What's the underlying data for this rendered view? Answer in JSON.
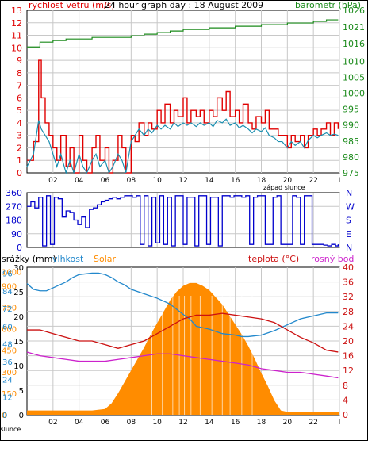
{
  "colors": {
    "wind": "#e00000",
    "gust": "#e00000",
    "wind_avg": "#1a8fb0",
    "pressure": "#1a8a1a",
    "direction": "#0000cc",
    "humidity": "#2288cc",
    "temperature": "#cc1111",
    "dew_point": "#cc22cc",
    "solar": "#ff8c00",
    "grid": "#c8c8c8",
    "axis": "#000000"
  },
  "chart_data": [
    {
      "type": "line",
      "title": "24 hour graph day : 18 August 2009",
      "left_label": "rychlost vetru (m/s)",
      "right_label": "barometr (hPa)",
      "sunset_label": "západ slunce",
      "left_ylim": [
        0,
        13
      ],
      "left_ticks": [
        "0",
        "1",
        "2",
        "3",
        "4",
        "5",
        "6",
        "7",
        "8",
        "9",
        "10",
        "11",
        "12",
        "13"
      ],
      "right_ylim": [
        975,
        1026
      ],
      "right_ticks": [
        "975",
        "980",
        "985",
        "990",
        "995",
        "1000",
        "1005",
        "1010",
        "1016",
        "1021",
        "1026"
      ],
      "x_ticks": [
        "02",
        "04",
        "06",
        "08",
        "10",
        "12",
        "14",
        "16",
        "18",
        "20",
        "22",
        "I"
      ],
      "x_tick_hours": [
        2,
        4,
        6,
        8,
        10,
        12,
        14,
        16,
        18,
        20,
        22,
        24
      ],
      "xlim": [
        0,
        24
      ],
      "sunset_hour": 20,
      "series": [
        {
          "key": "wind",
          "x": [
            0,
            0.5,
            0.9,
            1.1,
            1.4,
            1.7,
            2.0,
            2.3,
            2.6,
            3.0,
            3.3,
            3.6,
            4.0,
            4.3,
            4.6,
            5.0,
            5.3,
            5.6,
            6.0,
            6.3,
            6.6,
            7.0,
            7.3,
            7.6,
            8.0,
            8.3,
            8.6,
            9.0,
            9.3,
            9.6,
            10.0,
            10.3,
            10.6,
            11.0,
            11.3,
            11.6,
            12.0,
            12.3,
            12.6,
            13.0,
            13.3,
            13.6,
            14.0,
            14.3,
            14.6,
            15.0,
            15.3,
            15.6,
            16.0,
            16.3,
            16.6,
            17.0,
            17.3,
            17.6,
            18.0,
            18.3,
            18.6,
            19.0,
            19.3,
            19.6,
            20.0,
            20.3,
            20.6,
            21.0,
            21.3,
            21.6,
            22.0,
            22.3,
            22.6,
            23.0,
            23.3,
            23.6,
            23.9
          ],
          "values": [
            1,
            2.5,
            9,
            6,
            4,
            3,
            2,
            1,
            3,
            0.5,
            2,
            0,
            3,
            1,
            0,
            2,
            3,
            1,
            2,
            0,
            1,
            3,
            2,
            0,
            3,
            2.5,
            4,
            3,
            4,
            3.5,
            5,
            4,
            5.5,
            4,
            5,
            4.5,
            6,
            4,
            5,
            4.5,
            5,
            4,
            5,
            4.5,
            6,
            5,
            6.5,
            4.5,
            5,
            4,
            5.5,
            4,
            3.5,
            4.5,
            4,
            5,
            3.5,
            3.5,
            3,
            3,
            2,
            3,
            2.5,
            3,
            2,
            3,
            3.5,
            3,
            3.5,
            4,
            3,
            4,
            3.5
          ]
        },
        {
          "key": "wind_avg",
          "x": [
            0,
            0.5,
            0.9,
            1.1,
            1.4,
            1.7,
            2.0,
            2.3,
            2.6,
            3.0,
            3.3,
            3.6,
            4.0,
            4.3,
            4.6,
            5.0,
            5.3,
            5.6,
            6.0,
            6.3,
            6.6,
            7.0,
            7.3,
            7.6,
            8.0,
            8.3,
            8.6,
            9.0,
            9.3,
            9.6,
            10.0,
            10.3,
            10.6,
            11.0,
            11.3,
            11.6,
            12.0,
            12.3,
            12.6,
            13.0,
            13.3,
            13.6,
            14.0,
            14.3,
            14.6,
            15.0,
            15.3,
            15.6,
            16.0,
            16.3,
            16.6,
            17.0,
            17.3,
            17.6,
            18.0,
            18.3,
            18.6,
            19.0,
            19.3,
            19.6,
            20.0,
            20.3,
            20.6,
            21.0,
            21.3,
            21.6,
            22.0,
            22.3,
            22.6,
            23.0,
            23.3,
            23.6,
            23.9
          ],
          "values": [
            0.5,
            1.5,
            4.2,
            3.5,
            3,
            2.5,
            1.5,
            0.5,
            1.5,
            0,
            1,
            0,
            1.5,
            0.5,
            0,
            1,
            1.5,
            0.5,
            1,
            0,
            0.5,
            1.5,
            1,
            0,
            2.5,
            3,
            3.5,
            3,
            3.5,
            3.2,
            3.8,
            3.5,
            3.8,
            3.5,
            4,
            3.7,
            4,
            3.8,
            4,
            3.7,
            4,
            3.8,
            4,
            3.7,
            4.2,
            4,
            4.3,
            3.8,
            4,
            3.6,
            3.8,
            3.5,
            3.2,
            3.5,
            3.3,
            3.6,
            3,
            2.8,
            2.5,
            2.5,
            2,
            2.5,
            2.2,
            2.5,
            2,
            2.6,
            3,
            2.8,
            3,
            3.2,
            3,
            3.1,
            3
          ]
        },
        {
          "key": "pressure",
          "axis": "right",
          "x": [
            0,
            0.7,
            1.0,
            2.0,
            3.0,
            4.0,
            5.0,
            6.0,
            7.0,
            8.0,
            9.0,
            10.0,
            11.0,
            12.0,
            13.0,
            14.0,
            15.0,
            16.0,
            17.0,
            18.0,
            19.0,
            20.0,
            21.0,
            22.0,
            23.0,
            23.9
          ],
          "values": [
            1014.5,
            1014.5,
            1016,
            1016.5,
            1017,
            1017,
            1017.5,
            1017.5,
            1017.5,
            1018,
            1018.5,
            1019,
            1019.5,
            1020,
            1020,
            1020.5,
            1020.5,
            1021,
            1021,
            1021.5,
            1021.5,
            1022,
            1022,
            1022.5,
            1023,
            1023
          ]
        }
      ]
    },
    {
      "type": "line",
      "ylim": [
        0,
        360
      ],
      "left_ticks": [
        "0",
        "90",
        "180",
        "270",
        "360"
      ],
      "right_ticks": [
        "N",
        "W",
        "S",
        "E",
        "N"
      ],
      "series": [
        {
          "key": "direction",
          "x": [
            0,
            0.3,
            0.6,
            0.9,
            1.2,
            1.5,
            1.8,
            2.1,
            2.4,
            2.7,
            3.0,
            3.3,
            3.6,
            3.9,
            4.2,
            4.5,
            4.8,
            5.1,
            5.4,
            5.7,
            6.0,
            6.3,
            6.6,
            6.9,
            7.2,
            7.5,
            7.8,
            8.1,
            8.4,
            8.7,
            9.0,
            9.3,
            9.6,
            9.9,
            10.2,
            10.5,
            10.8,
            11.1,
            11.4,
            11.7,
            12.0,
            12.3,
            12.6,
            12.9,
            13.2,
            13.5,
            13.8,
            14.1,
            14.4,
            14.7,
            15.0,
            15.3,
            15.6,
            15.9,
            16.2,
            16.5,
            16.8,
            17.1,
            17.4,
            17.7,
            18.0,
            18.3,
            18.6,
            18.9,
            19.2,
            19.5,
            19.8,
            20.1,
            20.4,
            20.7,
            21.0,
            21.3,
            21.6,
            21.9,
            22.2,
            22.5,
            22.8,
            23.1,
            23.4,
            23.7,
            23.9
          ],
          "values": [
            270,
            300,
            260,
            330,
            10,
            340,
            20,
            330,
            320,
            200,
            240,
            230,
            180,
            150,
            200,
            130,
            250,
            260,
            280,
            300,
            310,
            320,
            330,
            320,
            330,
            340,
            340,
            330,
            340,
            20,
            340,
            10,
            330,
            30,
            340,
            20,
            330,
            10,
            340,
            340,
            20,
            330,
            330,
            10,
            340,
            340,
            20,
            330,
            330,
            10,
            340,
            340,
            330,
            340,
            340,
            330,
            340,
            20,
            330,
            340,
            340,
            20,
            20,
            330,
            340,
            20,
            20,
            20,
            340,
            330,
            20,
            340,
            340,
            20,
            20,
            20,
            15,
            10,
            20,
            10,
            20
          ]
        }
      ]
    },
    {
      "type": "line",
      "labels": {
        "rain": "srážky (mm)",
        "humidity": "vlhkost",
        "solar": "Solar",
        "temperature": "teplota (°C)",
        "dew_point": "rosný bod"
      },
      "sunset_label": "západ slunce",
      "rain_ticks": [
        "0",
        "5",
        "10",
        "15",
        "20",
        "25",
        "30"
      ],
      "humidity_ticks": [
        "0",
        "12",
        "24",
        "36",
        "48",
        "60",
        "72",
        "84",
        "96"
      ],
      "solar_ticks": [
        "0",
        "150",
        "300",
        "450",
        "600",
        "750",
        "900",
        "1000"
      ],
      "temp_ticks": [
        "0",
        "4",
        "8",
        "12",
        "16",
        "20",
        "24",
        "28",
        "32",
        "36",
        "40"
      ],
      "temp_ylim": [
        0,
        40
      ],
      "humidity_ylim": [
        0,
        100
      ],
      "solar_ylim": [
        0,
        1030
      ],
      "series": [
        {
          "key": "humidity",
          "axis": "humidity",
          "x": [
            0,
            0.5,
            1.0,
            1.5,
            2.0,
            2.5,
            3.0,
            3.5,
            4.0,
            5.0,
            5.5,
            6.0,
            6.5,
            7.0,
            7.5,
            8.0,
            9.0,
            10.0,
            11.0,
            12.0,
            12.5,
            13.0,
            14.0,
            15.0,
            16.0,
            16.5,
            17.0,
            18.0,
            19.0,
            20.0,
            21.0,
            22.0,
            23.0,
            23.9
          ],
          "values": [
            89,
            85,
            84,
            84,
            86,
            88,
            90,
            93,
            95,
            96,
            96,
            95,
            93,
            90,
            88,
            85,
            82,
            79,
            75,
            68,
            65,
            60,
            58,
            55,
            54,
            53,
            53,
            54,
            57,
            61,
            65,
            67,
            69,
            69
          ]
        },
        {
          "key": "temperature",
          "axis": "temp",
          "x": [
            0,
            1,
            2,
            3,
            4,
            5,
            6,
            7,
            8,
            9,
            10,
            11,
            12,
            13,
            14,
            15,
            16,
            17,
            18,
            19,
            20,
            21,
            22,
            23,
            23.9
          ],
          "values": [
            23,
            23,
            22,
            21,
            20,
            20,
            19,
            18,
            19,
            20,
            22,
            24,
            26,
            27,
            27,
            27.5,
            27,
            26.5,
            26,
            25,
            23,
            21,
            19.5,
            17.5,
            17
          ]
        },
        {
          "key": "dew_point",
          "axis": "temp",
          "x": [
            0,
            1,
            2,
            3,
            4,
            5,
            6,
            7,
            8,
            9,
            10,
            11,
            12,
            13,
            14,
            15,
            16,
            17,
            18,
            19,
            20,
            21,
            22,
            23,
            23.9
          ],
          "values": [
            17,
            16,
            15.5,
            15,
            14.5,
            14.5,
            14.5,
            15,
            15.5,
            16,
            16.5,
            16.5,
            16,
            15.5,
            15,
            14.5,
            14,
            13.5,
            12.5,
            12,
            11.5,
            11.5,
            11,
            10.5,
            10
          ]
        },
        {
          "key": "solar",
          "axis": "solar",
          "x": [
            0,
            5,
            6,
            6.5,
            7,
            7.5,
            8,
            8.5,
            9,
            9.5,
            10,
            10.5,
            11,
            11.5,
            12,
            12.5,
            13,
            13.5,
            14,
            14.5,
            15,
            15.5,
            16,
            16.5,
            17,
            17.5,
            18,
            18.5,
            19,
            19.5,
            20,
            24
          ],
          "values": [
            30,
            30,
            40,
            80,
            150,
            230,
            310,
            390,
            470,
            560,
            640,
            720,
            800,
            860,
            900,
            920,
            920,
            900,
            870,
            820,
            770,
            700,
            630,
            560,
            480,
            390,
            290,
            200,
            100,
            30,
            20,
            20
          ]
        }
      ]
    }
  ]
}
